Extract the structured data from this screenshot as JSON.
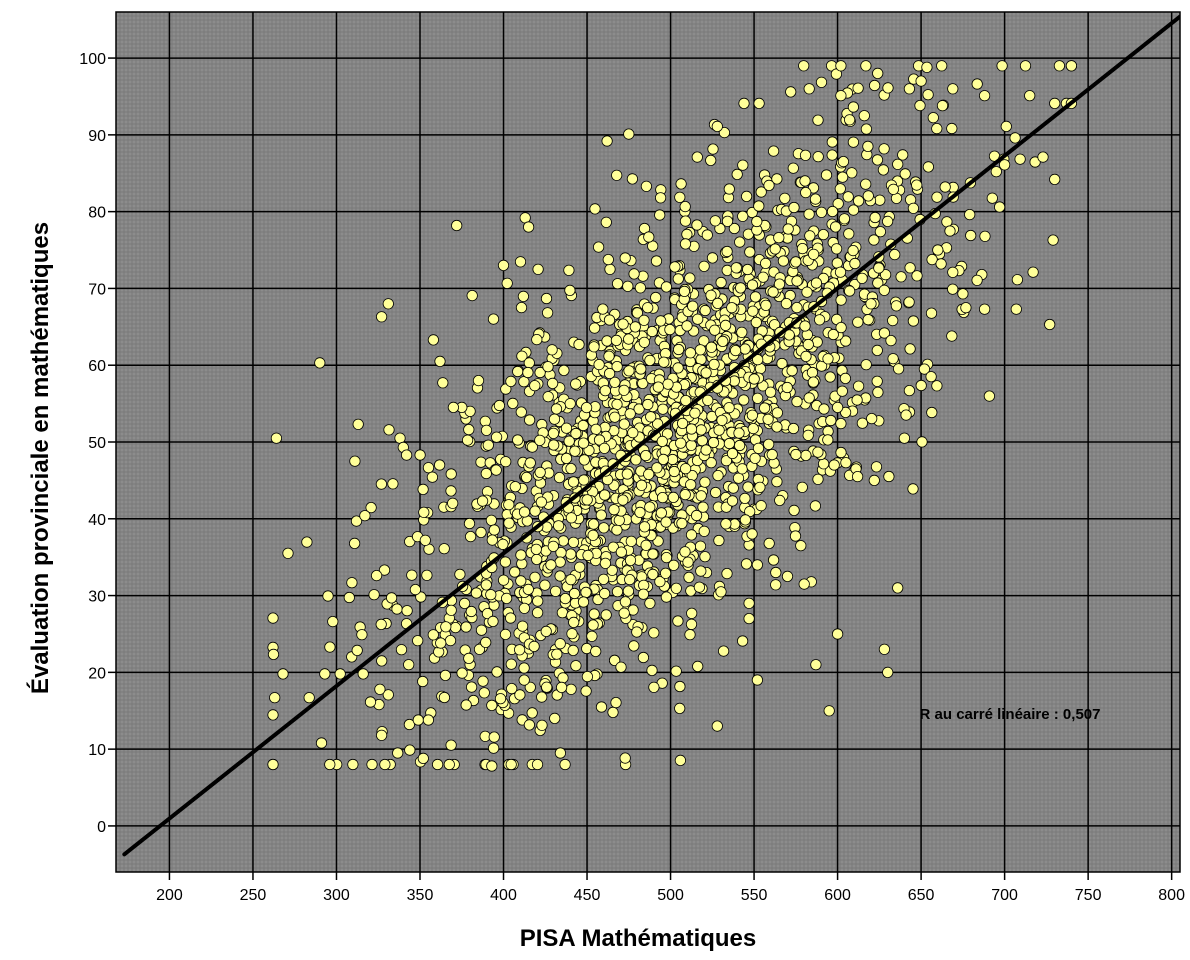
{
  "chart_data": {
    "type": "scatter",
    "title": "",
    "xlabel": "PISA Mathématiques",
    "ylabel": "Évaluation provinciale en mathématiques",
    "xlim": [
      168,
      805
    ],
    "ylim": [
      -6,
      106
    ],
    "x_ticks": [
      200,
      250,
      300,
      350,
      400,
      450,
      500,
      550,
      600,
      650,
      700,
      750,
      800
    ],
    "y_ticks": [
      0,
      10,
      20,
      30,
      40,
      50,
      60,
      70,
      80,
      90,
      100
    ],
    "x_tick_labels": [
      "200",
      "250",
      "300",
      "350",
      "400",
      "450",
      "500",
      "550",
      "600",
      "650",
      "700",
      "750",
      "800"
    ],
    "y_tick_labels": [
      "0",
      "10",
      "20",
      "30",
      "40",
      "50",
      "60",
      "70",
      "80",
      "90",
      "100"
    ],
    "grid": true,
    "background_color": "#8c8c8c",
    "point_color": "#ffff99",
    "point_edge_color": "#000000",
    "regression_line": {
      "x": [
        173,
        805
      ],
      "y": [
        -3.7,
        105.4
      ],
      "color": "#000000"
    },
    "annotation": "R au carré linéaire :  0,507",
    "points_note": "approximately 2000 points; representative outliers listed explicitly, dense cloud approximated",
    "outliers": [
      [
        264,
        50.5
      ],
      [
        263,
        16.7
      ],
      [
        271,
        35.5
      ],
      [
        268,
        19.8
      ],
      [
        290,
        60.3
      ],
      [
        291,
        10.8
      ],
      [
        293,
        19.8
      ],
      [
        311,
        47.5
      ],
      [
        312,
        39.7
      ],
      [
        313,
        52.3
      ],
      [
        317,
        40.4
      ],
      [
        316,
        19.8
      ],
      [
        324,
        32.6
      ],
      [
        326,
        17.8
      ],
      [
        327,
        66.3
      ],
      [
        327,
        11.8
      ],
      [
        331,
        68.0
      ],
      [
        333,
        29.7
      ],
      [
        338,
        50.5
      ],
      [
        340,
        49.3
      ],
      [
        342,
        48.3
      ],
      [
        349,
        13.8
      ],
      [
        352,
        8.8
      ],
      [
        355,
        13.8
      ],
      [
        358,
        63.3
      ],
      [
        362,
        60.5
      ],
      [
        372,
        78.2
      ],
      [
        393,
        7.8
      ],
      [
        393,
        15.7
      ],
      [
        394,
        66.0
      ],
      [
        462,
        89.2
      ],
      [
        528,
        13.0
      ],
      [
        552,
        19.0
      ],
      [
        587,
        21.0
      ],
      [
        595,
        15.0
      ],
      [
        600,
        25.0
      ],
      [
        622,
        45.0
      ],
      [
        628,
        23.0
      ],
      [
        630,
        20.0
      ],
      [
        636,
        31.0
      ],
      [
        640,
        50.5
      ],
      [
        641,
        53.5
      ],
      [
        643,
        56.7
      ],
      [
        652,
        59.5
      ],
      [
        656,
        58.5
      ],
      [
        707,
        67.3
      ],
      [
        727,
        65.3
      ],
      [
        729,
        76.3
      ],
      [
        730,
        84.2
      ],
      [
        602,
        99.0
      ],
      [
        624,
        98.0
      ],
      [
        650,
        97.0
      ],
      [
        715,
        95.1
      ],
      [
        730,
        94.1
      ],
      [
        737,
        94.1
      ],
      [
        688,
        95.1
      ],
      [
        669,
        96.0
      ],
      [
        643,
        96.0
      ],
      [
        544,
        94.1
      ],
      [
        553,
        94.1
      ],
      [
        583,
        96.0
      ],
      [
        602,
        95.1
      ],
      [
        528,
        91.1
      ],
      [
        475,
        90.1
      ],
      [
        516,
        87.1
      ],
      [
        701,
        91.1
      ],
      [
        723,
        87.1
      ],
      [
        740,
        94.1
      ],
      [
        700,
        86.1
      ],
      [
        695,
        85.2
      ],
      [
        660,
        75.0
      ],
      [
        662,
        73.2
      ],
      [
        669,
        72.1
      ],
      [
        675,
        69.3
      ],
      [
        688,
        67.3
      ],
      [
        620,
        68.0
      ],
      [
        628,
        64.2
      ],
      [
        632,
        63.2
      ],
      [
        600,
        54.5
      ],
      [
        602,
        52.4
      ],
      [
        598,
        47.0
      ],
      [
        605,
        47.3
      ],
      [
        611,
        46.5
      ],
      [
        612,
        45.5
      ],
      [
        547,
        29.0
      ],
      [
        547,
        27.0
      ],
      [
        552,
        34.0
      ],
      [
        563,
        33.0
      ],
      [
        570,
        32.5
      ],
      [
        580,
        31.5
      ],
      [
        578,
        36.5
      ],
      [
        413,
        79.2
      ],
      [
        415,
        78.0
      ],
      [
        400,
        73.0
      ],
      [
        385,
        58.0
      ],
      [
        380,
        54.0
      ],
      [
        375,
        54.5
      ],
      [
        370,
        54.5
      ]
    ],
    "cluster_params": {
      "x_mean": 500,
      "x_sd": 80,
      "y_mean": 51.5,
      "y_sd": 18.5,
      "r": 0.712,
      "n": 1900
    }
  }
}
